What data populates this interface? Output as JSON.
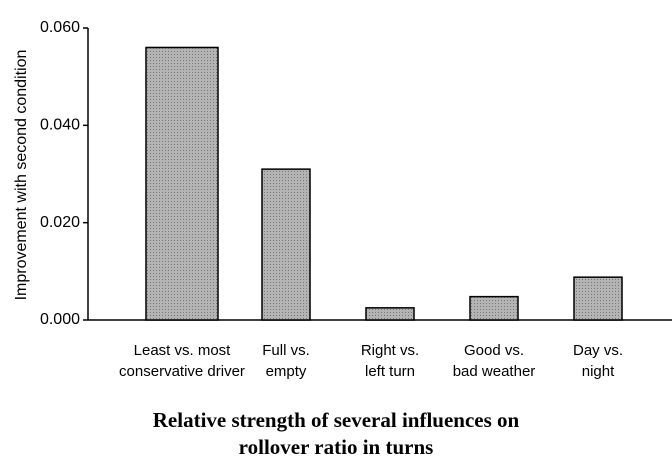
{
  "chart_data": {
    "type": "bar",
    "title": "Relative strength of several influences on\nrollover ratio in turns",
    "y_label": "Improvement with second condition",
    "categories": [
      "Least vs. most\nconservative driver",
      "Full vs.\nempty",
      "Right vs.\nleft turn",
      "Good vs.\nbad weather",
      "Day vs.\nnight"
    ],
    "values": [
      0.056,
      0.031,
      0.0025,
      0.0048,
      0.0088
    ],
    "color": "#b4b4b4",
    "ylim": [
      0,
      0.06
    ],
    "yticks": [
      {
        "value": 0,
        "label": "0.000"
      },
      {
        "value": 0.02,
        "label": "0.020"
      },
      {
        "value": 0.04,
        "label": "0.040"
      },
      {
        "value": 0.06,
        "label": "0.060"
      }
    ],
    "grid": false
  }
}
